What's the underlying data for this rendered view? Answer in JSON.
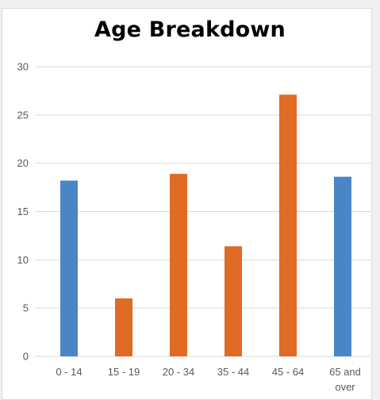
{
  "chart_data": {
    "type": "bar",
    "title": "Age Breakdown",
    "categories": [
      "0 - 14",
      "15 - 19",
      "20 - 34",
      "35 - 44",
      "45 - 64",
      "65 and over"
    ],
    "category_lines": [
      [
        "0 - 14"
      ],
      [
        "15 - 19"
      ],
      [
        "20 - 34"
      ],
      [
        "35 - 44"
      ],
      [
        "45 - 64"
      ],
      [
        "65 and",
        "over"
      ]
    ],
    "values": [
      18.2,
      6.0,
      18.9,
      11.4,
      27.1,
      18.6
    ],
    "bar_colors": [
      "#4a86c6",
      "#e06b24",
      "#e06b24",
      "#e06b24",
      "#e06b24",
      "#4a86c6"
    ],
    "xlabel": "",
    "ylabel": "",
    "ylim": [
      0,
      30
    ],
    "yticks": [
      0,
      5,
      10,
      15,
      20,
      25,
      30
    ],
    "grid": true,
    "legend": "none"
  },
  "colors": {
    "blue": "#4a86c6",
    "orange": "#e06b24",
    "gridline": "#d9d9d9",
    "axis_text": "#595959"
  }
}
